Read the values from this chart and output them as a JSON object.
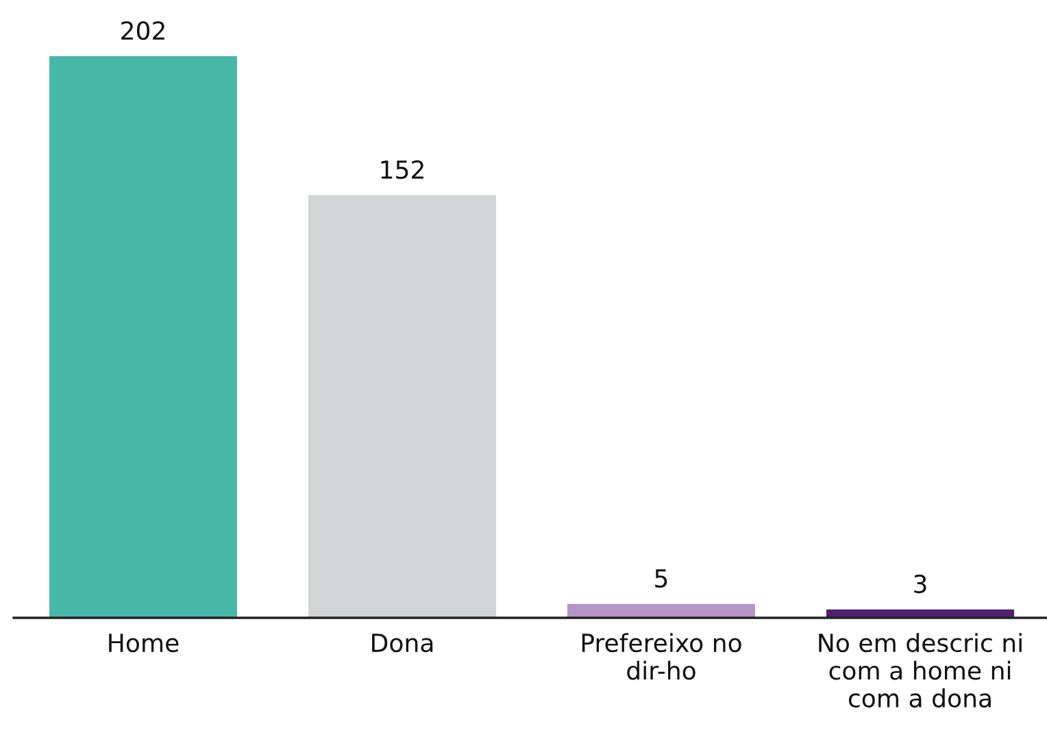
{
  "chart_data": {
    "type": "bar",
    "categories": [
      "Home",
      "Dona",
      "Prefereixo no\ndir-ho",
      "No em descric ni\ncom a home ni\ncom a dona"
    ],
    "values": [
      202,
      152,
      5,
      3
    ],
    "colors": [
      "#47b8a8",
      "#d3d4d6",
      "#b495c8",
      "#4f1f72"
    ],
    "data_labels": true,
    "grid": false,
    "legend": false
  }
}
